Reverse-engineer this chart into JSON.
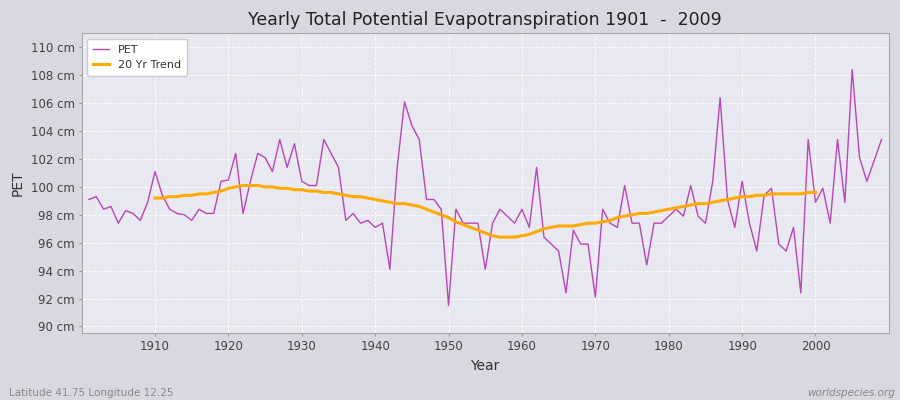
{
  "title": "Yearly Total Potential Evapotranspiration 1901  -  2009",
  "xlabel": "Year",
  "ylabel": "PET",
  "footer_left": "Latitude 41.75 Longitude 12.25",
  "footer_right": "worldspecies.org",
  "pet_color": "#bb44bb",
  "trend_color": "#ffaa00",
  "fig_bg_color": "#d8d8e0",
  "plot_bg_color": "#e8e8f0",
  "grid_color": "#ffffff",
  "ylim": [
    89.5,
    111.0
  ],
  "yticks": [
    90,
    92,
    94,
    96,
    98,
    100,
    102,
    104,
    106,
    108,
    110
  ],
  "xlim": [
    1900,
    2010
  ],
  "xticks": [
    1910,
    1920,
    1930,
    1940,
    1950,
    1960,
    1970,
    1980,
    1990,
    2000
  ],
  "years": [
    1901,
    1902,
    1903,
    1904,
    1905,
    1906,
    1907,
    1908,
    1909,
    1910,
    1911,
    1912,
    1913,
    1914,
    1915,
    1916,
    1917,
    1918,
    1919,
    1920,
    1921,
    1922,
    1923,
    1924,
    1925,
    1926,
    1927,
    1928,
    1929,
    1930,
    1931,
    1932,
    1933,
    1934,
    1935,
    1936,
    1937,
    1938,
    1939,
    1940,
    1941,
    1942,
    1943,
    1944,
    1945,
    1946,
    1947,
    1948,
    1949,
    1950,
    1951,
    1952,
    1953,
    1954,
    1955,
    1956,
    1957,
    1958,
    1959,
    1960,
    1961,
    1962,
    1963,
    1964,
    1965,
    1966,
    1967,
    1968,
    1969,
    1970,
    1971,
    1972,
    1973,
    1974,
    1975,
    1976,
    1977,
    1978,
    1979,
    1980,
    1981,
    1982,
    1983,
    1984,
    1985,
    1986,
    1987,
    1988,
    1989,
    1990,
    1991,
    1992,
    1993,
    1994,
    1995,
    1996,
    1997,
    1998,
    1999,
    2000,
    2001,
    2002,
    2003,
    2004,
    2005,
    2006,
    2007,
    2008,
    2009
  ],
  "pet_values": [
    99.1,
    99.3,
    98.4,
    98.6,
    97.4,
    98.3,
    98.1,
    97.6,
    98.9,
    101.1,
    99.4,
    98.4,
    98.1,
    98.0,
    97.6,
    98.4,
    98.1,
    98.1,
    100.4,
    100.5,
    102.4,
    98.1,
    100.4,
    102.4,
    102.1,
    101.1,
    103.4,
    101.4,
    103.1,
    100.4,
    100.1,
    100.1,
    103.4,
    102.4,
    101.4,
    97.6,
    98.1,
    97.4,
    97.6,
    97.1,
    97.4,
    94.1,
    101.4,
    106.1,
    104.4,
    103.4,
    99.1,
    99.1,
    98.4,
    91.5,
    98.4,
    97.4,
    97.4,
    97.4,
    94.1,
    97.4,
    98.4,
    97.9,
    97.4,
    98.4,
    97.1,
    101.4,
    96.4,
    95.9,
    95.4,
    92.4,
    96.9,
    95.9,
    95.9,
    92.1,
    98.4,
    97.4,
    97.1,
    100.1,
    97.4,
    97.4,
    94.4,
    97.4,
    97.4,
    97.9,
    98.4,
    97.9,
    100.1,
    97.9,
    97.4,
    100.4,
    106.4,
    99.1,
    97.1,
    100.4,
    97.4,
    95.4,
    99.4,
    99.9,
    95.9,
    95.4,
    97.1,
    92.4,
    103.4,
    98.9,
    99.9,
    97.4,
    103.4,
    98.9,
    108.4,
    102.1,
    100.4,
    101.9,
    103.4
  ],
  "trend_values": [
    null,
    null,
    null,
    null,
    null,
    null,
    null,
    null,
    null,
    99.2,
    99.2,
    99.3,
    99.3,
    99.4,
    99.4,
    99.5,
    99.5,
    99.6,
    99.7,
    99.9,
    100.0,
    100.1,
    100.1,
    100.1,
    100.0,
    100.0,
    99.9,
    99.9,
    99.8,
    99.8,
    99.7,
    99.7,
    99.6,
    99.6,
    99.5,
    99.4,
    99.3,
    99.3,
    99.2,
    99.1,
    99.0,
    98.9,
    98.8,
    98.8,
    98.7,
    98.6,
    98.4,
    98.2,
    98.0,
    97.8,
    97.5,
    97.3,
    97.1,
    96.9,
    96.7,
    96.5,
    96.4,
    96.4,
    96.4,
    96.5,
    96.6,
    96.8,
    97.0,
    97.1,
    97.2,
    97.2,
    97.2,
    97.3,
    97.4,
    97.4,
    97.5,
    97.6,
    97.8,
    97.9,
    98.0,
    98.1,
    98.1,
    98.2,
    98.3,
    98.4,
    98.5,
    98.6,
    98.7,
    98.8,
    98.8,
    98.9,
    99.0,
    99.1,
    99.2,
    99.3,
    99.3,
    99.4,
    99.4,
    99.5,
    99.5,
    99.5,
    99.5,
    99.5,
    99.6,
    99.6,
    null,
    null,
    null,
    null,
    null,
    null,
    null,
    null,
    null
  ]
}
